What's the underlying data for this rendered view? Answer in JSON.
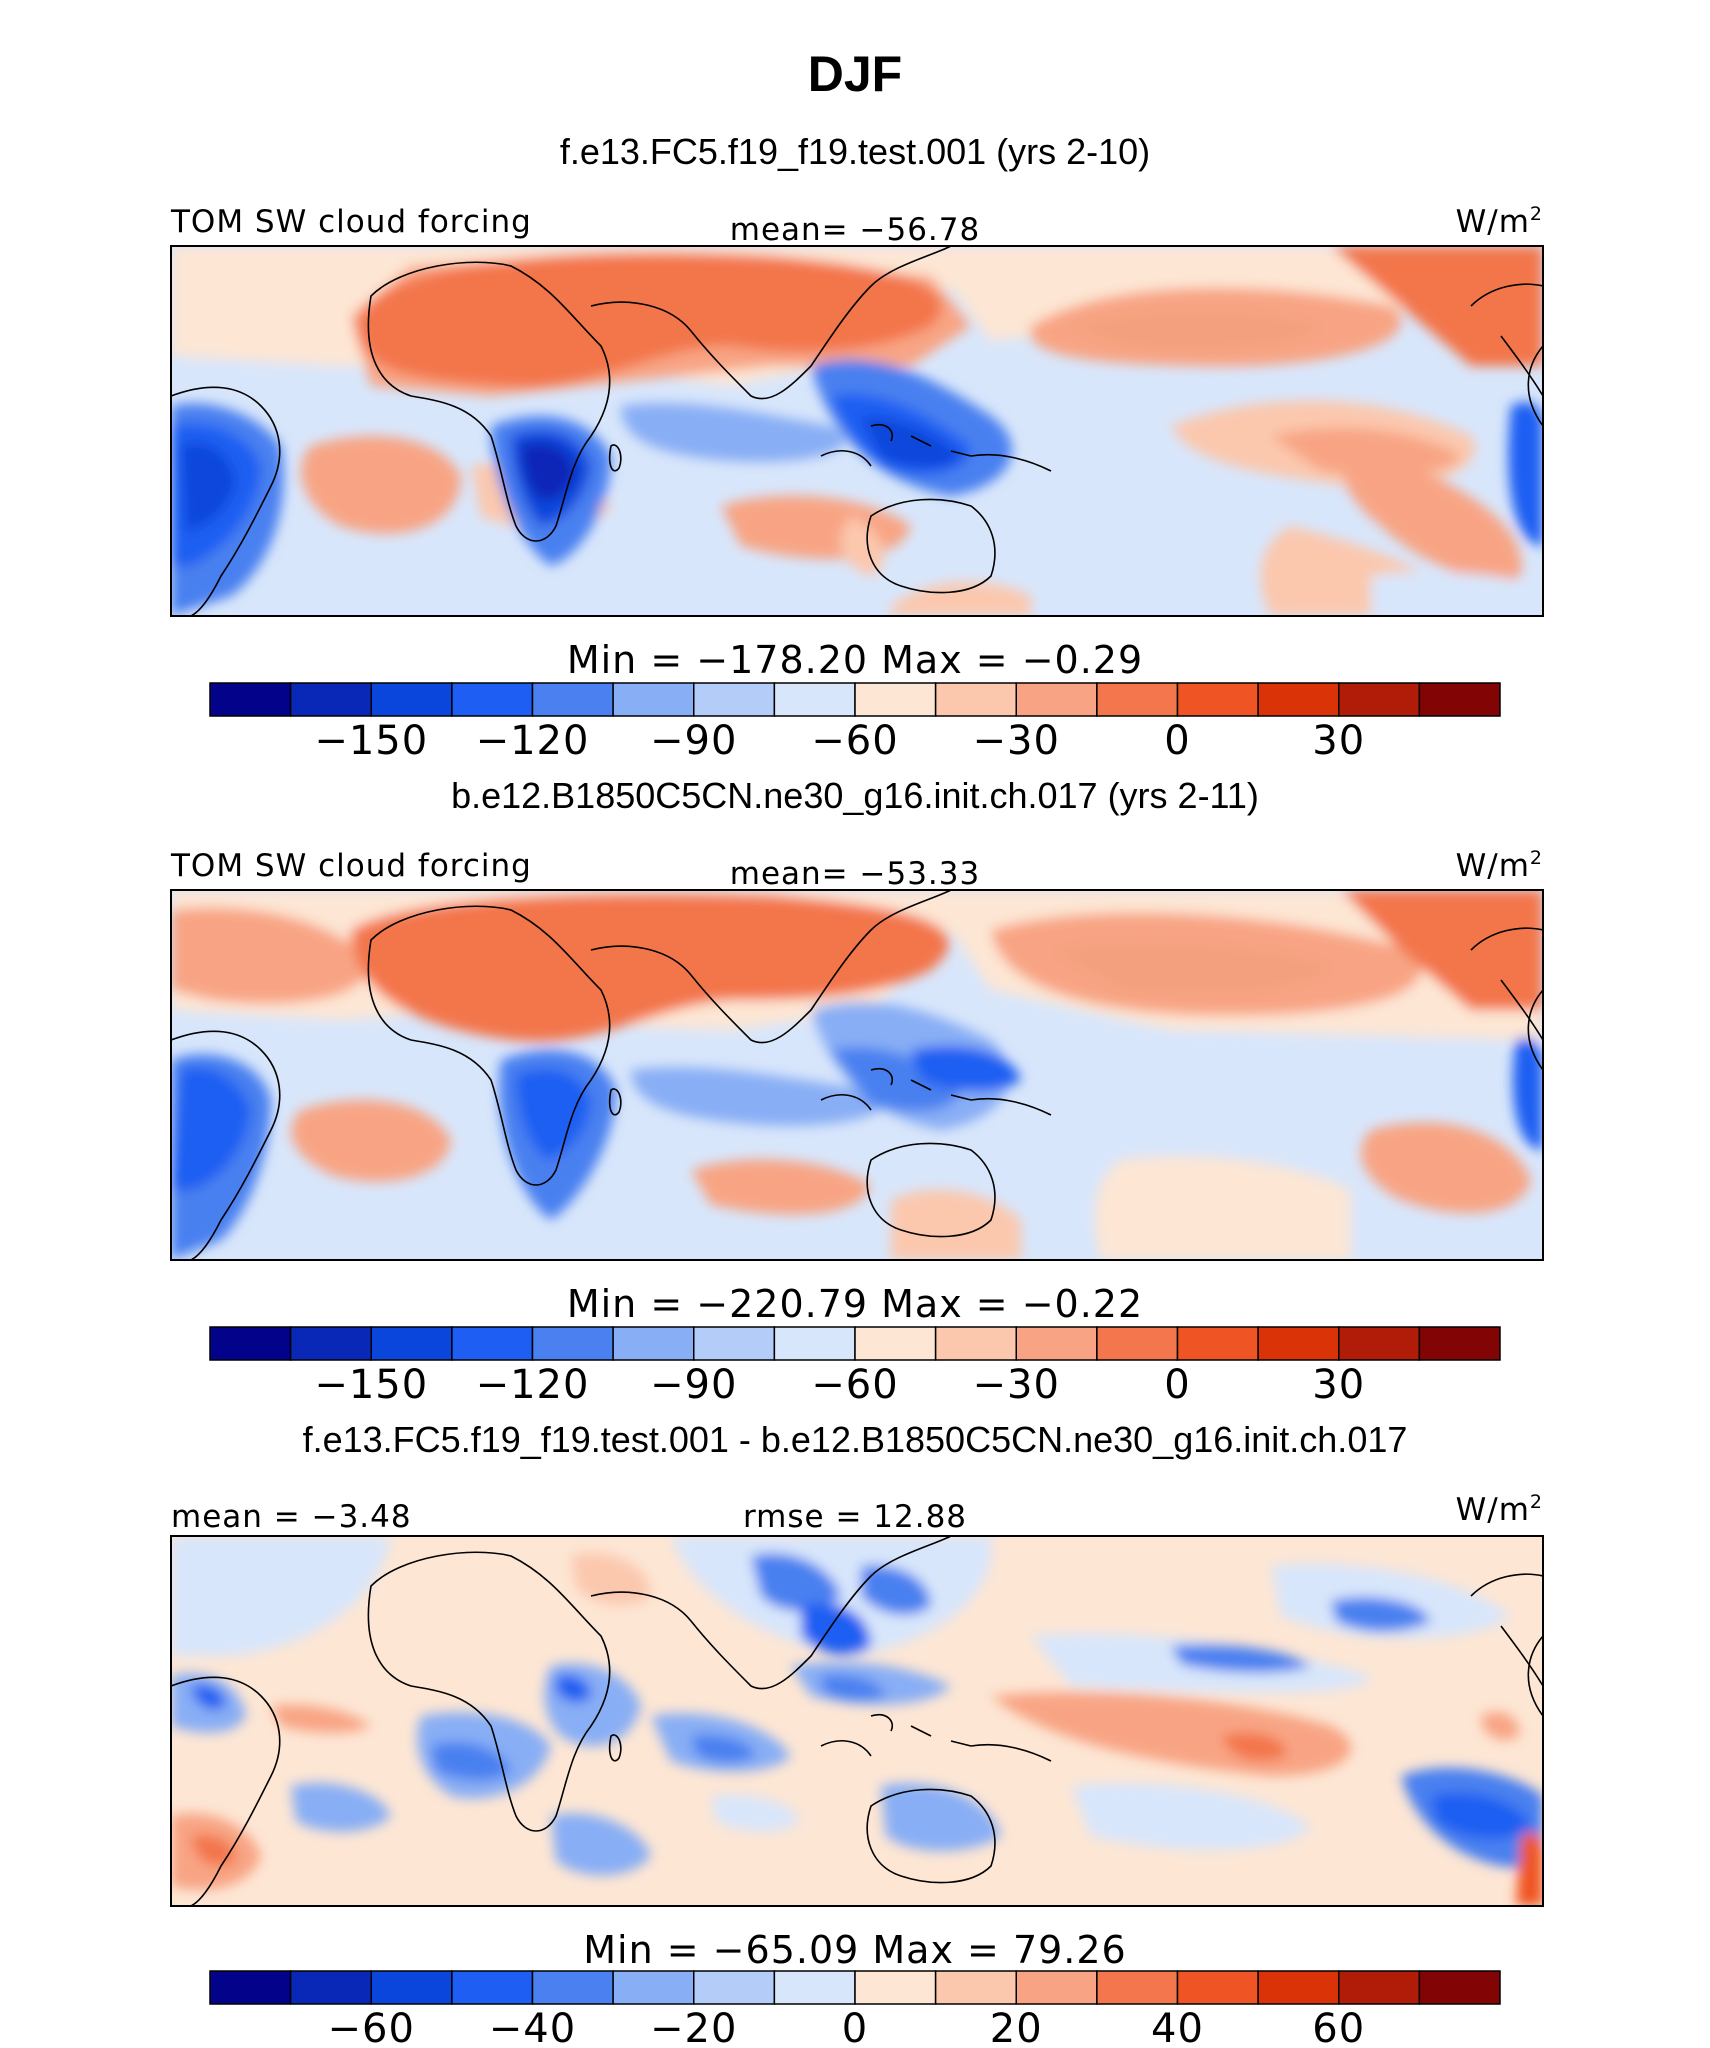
{
  "page_title": "DJF",
  "chart_data": [
    {
      "type": "heatmap",
      "title": "f.e13.FC5.f19_f19.test.001 (yrs 2-10)",
      "variable_label": "TOM SW cloud forcing",
      "center_label": "mean= −56.78",
      "units": "W/m",
      "units_sup": "2",
      "minmax_label": "Min  =  −178.20  Max  =    −0.29",
      "colorbar": {
        "colors": [
          "#02028a",
          "#0a28b8",
          "#0a46dc",
          "#1e5ef2",
          "#4a80f0",
          "#88aef5",
          "#b4ccf8",
          "#d8e6fb",
          "#fde6d4",
          "#fbc8ae",
          "#f8a484",
          "#f3764c",
          "#ef5424",
          "#db3308",
          "#b01c08",
          "#830404"
        ],
        "tick_values": [
          -150,
          -120,
          -90,
          -60,
          -30,
          0,
          30
        ],
        "tick_labels": [
          "−150",
          "−120",
          "−90",
          "−60",
          "−30",
          "0",
          "30"
        ]
      }
    },
    {
      "type": "heatmap",
      "title": "b.e12.B1850C5CN.ne30_g16.init.ch.017 (yrs 2-11)",
      "variable_label": "TOM SW cloud forcing",
      "center_label": "mean= −53.33",
      "units": "W/m",
      "units_sup": "2",
      "minmax_label": "Min  =  −220.79  Max  =    −0.22",
      "colorbar": {
        "colors": [
          "#02028a",
          "#0a28b8",
          "#0a46dc",
          "#1e5ef2",
          "#4a80f0",
          "#88aef5",
          "#b4ccf8",
          "#d8e6fb",
          "#fde6d4",
          "#fbc8ae",
          "#f8a484",
          "#f3764c",
          "#ef5424",
          "#db3308",
          "#b01c08",
          "#830404"
        ],
        "tick_values": [
          -150,
          -120,
          -90,
          -60,
          -30,
          0,
          30
        ],
        "tick_labels": [
          "−150",
          "−120",
          "−90",
          "−60",
          "−30",
          "0",
          "30"
        ]
      }
    },
    {
      "type": "heatmap",
      "title": "f.e13.FC5.f19_f19.test.001 - b.e12.B1850C5CN.ne30_g16.init.ch.017",
      "variable_label": "mean  =   −3.48",
      "center_label": "rmse  =   12.88",
      "units": "W/m",
      "units_sup": "2",
      "minmax_label": "Min  =  −65.09  Max  =   79.26",
      "colorbar": {
        "colors": [
          "#02028a",
          "#0a28b8",
          "#0a46dc",
          "#1e5ef2",
          "#4a80f0",
          "#88aef5",
          "#b4ccf8",
          "#d8e6fb",
          "#fde6d4",
          "#fbc8ae",
          "#f8a484",
          "#f3764c",
          "#ef5424",
          "#db3308",
          "#b01c08",
          "#830404"
        ],
        "tick_values": [
          -60,
          -40,
          -20,
          0,
          20,
          40,
          60
        ],
        "tick_labels": [
          "−60",
          "−40",
          "−20",
          "0",
          "20",
          "40",
          "60"
        ]
      }
    }
  ]
}
